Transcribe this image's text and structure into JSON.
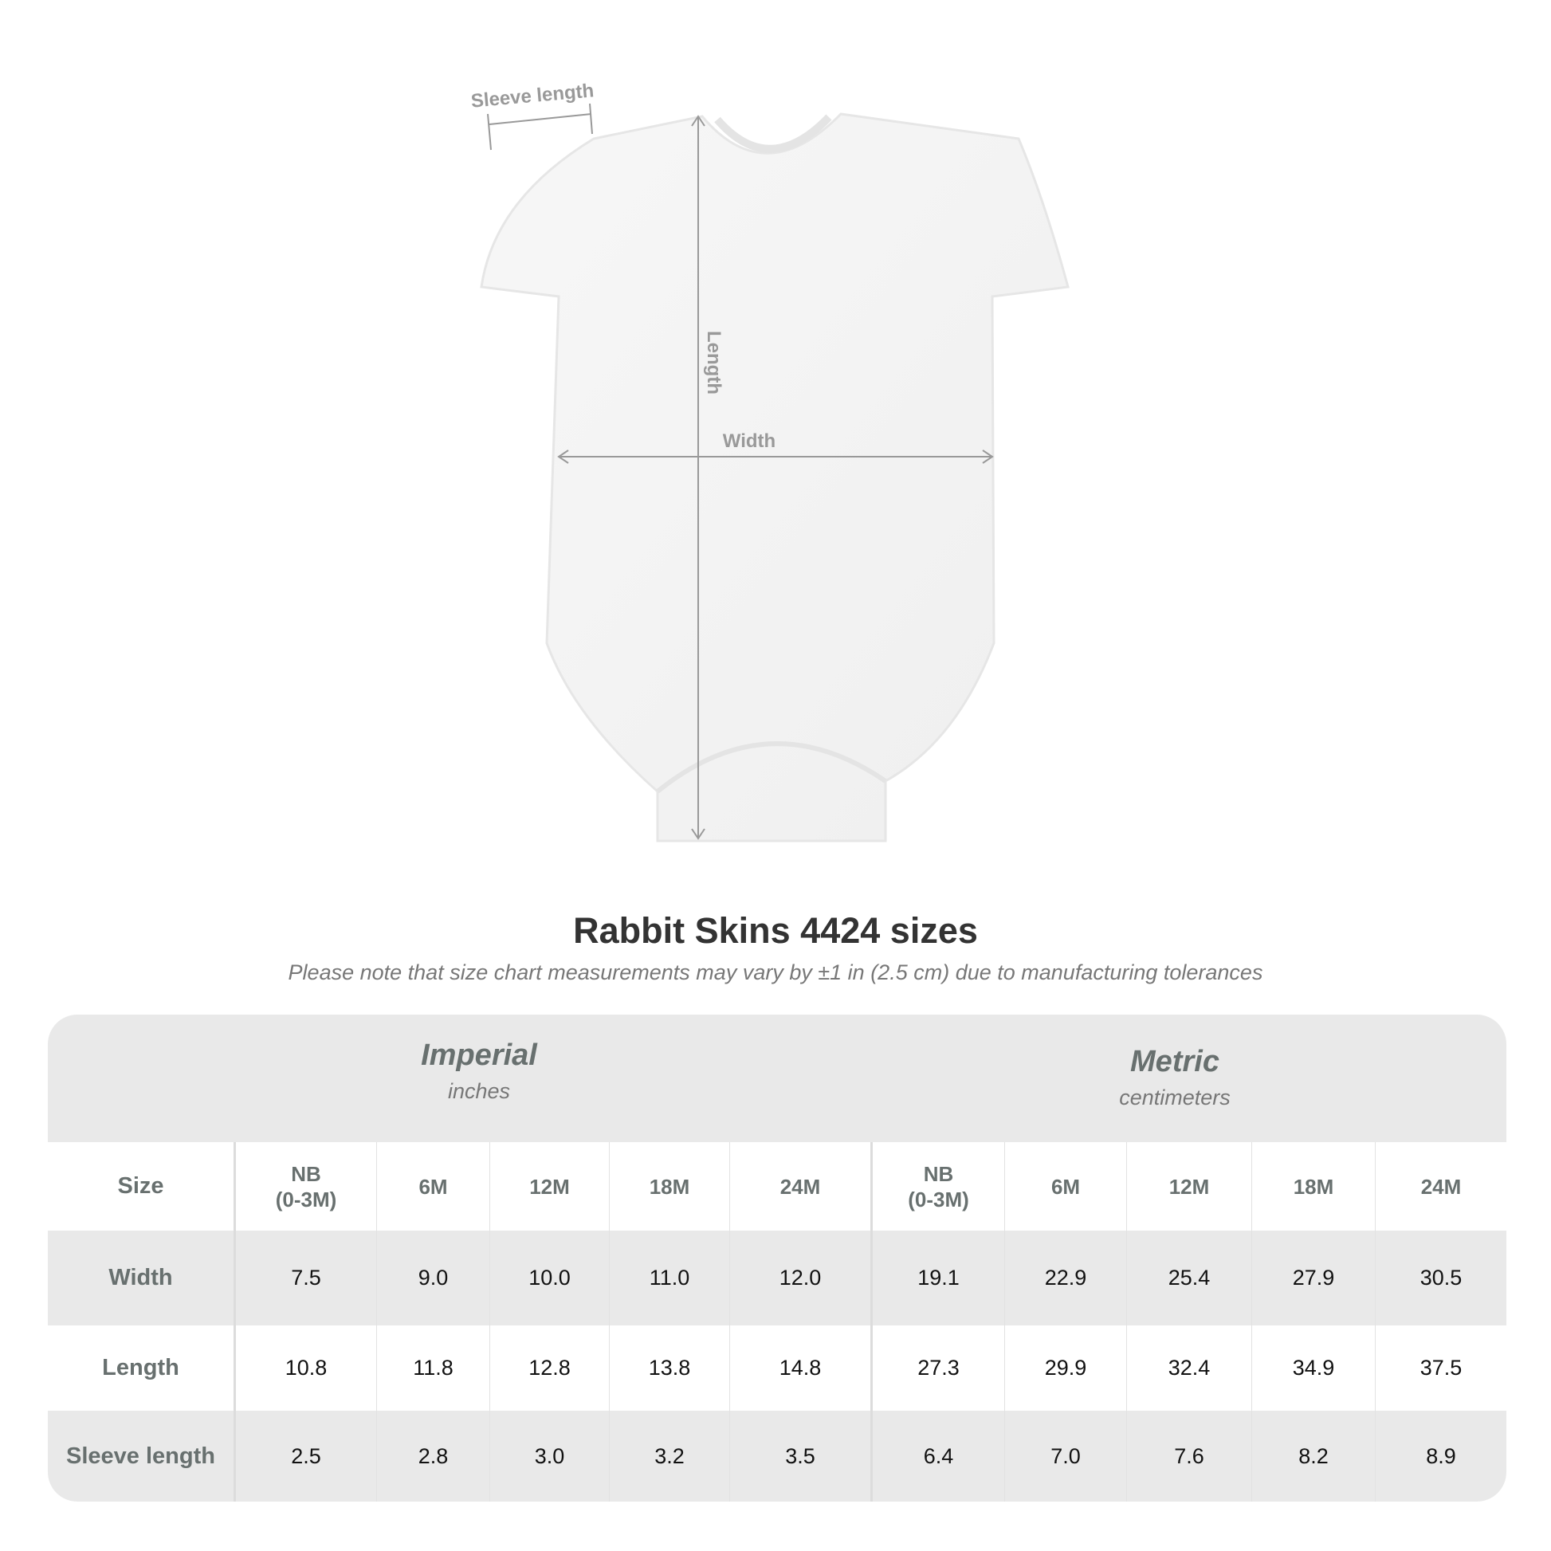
{
  "diagram": {
    "sleeve_label": "Sleeve length",
    "length_label": "Length",
    "width_label": "Width"
  },
  "title": "Rabbit Skins 4424 sizes",
  "subtitle": "Please note that size chart measurements may vary by ±1 in (2.5 cm) due to manufacturing tolerances",
  "table": {
    "imperial": {
      "name": "Imperial",
      "unit": "inches"
    },
    "metric": {
      "name": "Metric",
      "unit": "centimeters"
    },
    "size_label": "Size",
    "sizes": [
      "NB\n(0-3M)",
      "6M",
      "12M",
      "18M",
      "24M"
    ],
    "rows": [
      {
        "label": "Width",
        "imperial": [
          "7.5",
          "9.0",
          "10.0",
          "11.0",
          "12.0"
        ],
        "metric": [
          "19.1",
          "22.9",
          "25.4",
          "27.9",
          "30.5"
        ]
      },
      {
        "label": "Length",
        "imperial": [
          "10.8",
          "11.8",
          "12.8",
          "13.8",
          "14.8"
        ],
        "metric": [
          "27.3",
          "29.9",
          "32.4",
          "34.9",
          "37.5"
        ]
      },
      {
        "label": "Sleeve length",
        "imperial": [
          "2.5",
          "2.8",
          "3.0",
          "3.2",
          "3.5"
        ],
        "metric": [
          "6.4",
          "7.0",
          "7.6",
          "8.2",
          "8.9"
        ]
      }
    ]
  },
  "colors": {
    "header_bg": "#e9e9e9",
    "label_text": "#68706f",
    "arrow": "#999999"
  }
}
